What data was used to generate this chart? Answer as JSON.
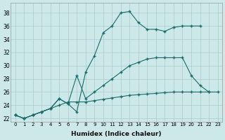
{
  "xlabel": "Humidex (Indice chaleur)",
  "background_color": "#cce8e8",
  "grid_color": "#aacccc",
  "line_color": "#1a6b6b",
  "xlim": [
    -0.5,
    23.5
  ],
  "ylim": [
    21.5,
    39.5
  ],
  "xticks": [
    0,
    1,
    2,
    3,
    4,
    5,
    6,
    7,
    8,
    9,
    10,
    11,
    12,
    13,
    14,
    15,
    16,
    17,
    18,
    19,
    20,
    21,
    22,
    23
  ],
  "yticks": [
    22,
    24,
    26,
    28,
    30,
    32,
    34,
    36,
    38
  ],
  "line1_x": [
    0,
    1,
    2,
    3,
    4,
    5,
    6,
    7,
    8,
    9,
    10,
    11,
    12,
    13,
    14,
    15,
    16,
    17,
    18,
    19,
    20,
    21,
    22,
    23
  ],
  "line1_y": [
    22.5,
    22.0,
    22.5,
    23.0,
    23.5,
    25.0,
    24.2,
    23.0,
    29.0,
    31.5,
    35.0,
    36.0,
    38.0,
    38.2,
    36.5,
    35.5,
    35.5,
    35.2,
    35.8,
    36.0,
    36.0,
    36.0,
    null,
    null
  ],
  "line2_x": [
    0,
    1,
    2,
    3,
    4,
    5,
    6,
    7,
    8,
    9,
    10,
    11,
    12,
    13,
    14,
    15,
    16,
    17,
    18,
    19,
    20,
    21,
    22
  ],
  "line2_y": [
    22.5,
    22.0,
    22.5,
    23.0,
    23.5,
    25.0,
    24.2,
    28.5,
    25.0,
    26.0,
    27.0,
    28.0,
    29.0,
    30.0,
    30.5,
    31.0,
    31.2,
    31.2,
    31.2,
    31.2,
    28.5,
    27.0,
    26.0
  ],
  "line3_x": [
    0,
    1,
    2,
    3,
    4,
    5,
    6,
    7,
    8,
    9,
    10,
    11,
    12,
    13,
    14,
    15,
    16,
    17,
    18,
    19,
    20,
    21,
    22,
    23
  ],
  "line3_y": [
    22.5,
    22.0,
    22.5,
    23.0,
    23.5,
    24.0,
    24.5,
    24.5,
    24.5,
    24.7,
    24.9,
    25.1,
    25.3,
    25.5,
    25.6,
    25.7,
    25.8,
    25.9,
    26.0,
    26.0,
    26.0,
    26.0,
    26.0,
    26.0
  ]
}
